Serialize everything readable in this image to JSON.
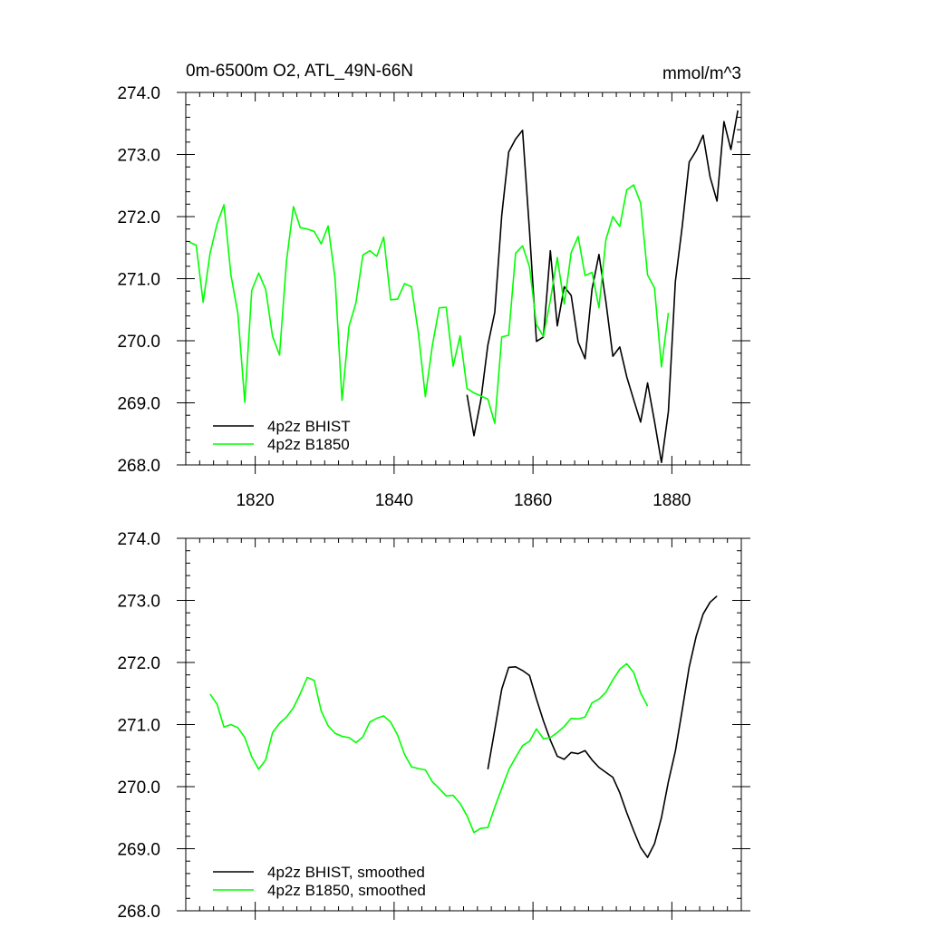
{
  "chart_data": [
    {
      "type": "line",
      "title_left": "0m-6500m O2, ATL_49N-66N",
      "title_right": "mmol/m^3",
      "xlim": [
        1810,
        1890
      ],
      "ylim": [
        268.0,
        274.0
      ],
      "x_ticks": [
        1820,
        1840,
        1860,
        1880
      ],
      "x_tick_labels": [
        "1820",
        "1840",
        "1860",
        "1880"
      ],
      "y_ticks": [
        268.0,
        269.0,
        270.0,
        271.0,
        272.0,
        273.0,
        274.0
      ],
      "y_tick_labels": [
        "268.0",
        "269.0",
        "270.0",
        "271.0",
        "272.0",
        "273.0",
        "274.0"
      ],
      "legend_position": "bottom-left",
      "series": [
        {
          "name": "4p2z BHIST",
          "color": "#000000",
          "x": [
            1850.5,
            1851.5,
            1852.5,
            1853.5,
            1854.5,
            1855.5,
            1856.5,
            1857.5,
            1858.5,
            1859.5,
            1860.5,
            1861.5,
            1862.5,
            1863.5,
            1864.5,
            1865.5,
            1866.5,
            1867.5,
            1868.5,
            1869.5,
            1870.5,
            1871.5,
            1872.5,
            1873.5,
            1874.5,
            1875.5,
            1876.5,
            1877.5,
            1878.5,
            1879.5,
            1880.5,
            1881.5,
            1882.5,
            1883.5,
            1884.5,
            1885.5,
            1886.5,
            1887.5,
            1888.5,
            1889.5
          ],
          "values": [
            269.13,
            268.47,
            269.05,
            269.93,
            270.46,
            272.02,
            273.04,
            273.25,
            273.39,
            271.77,
            269.99,
            270.06,
            271.45,
            270.24,
            270.87,
            270.73,
            269.98,
            269.71,
            270.83,
            271.39,
            270.63,
            269.75,
            269.9,
            269.42,
            269.05,
            268.69,
            269.32,
            268.7,
            268.04,
            268.86,
            270.95,
            271.85,
            272.88,
            273.06,
            273.31,
            272.64,
            272.25,
            273.53,
            273.08,
            273.71
          ]
        },
        {
          "name": "4p2z B1850",
          "color": "#00ff00",
          "x": [
            1810.5,
            1811.5,
            1812.5,
            1813.5,
            1814.5,
            1815.5,
            1816.5,
            1817.5,
            1818.5,
            1819.5,
            1820.5,
            1821.5,
            1822.5,
            1823.5,
            1824.5,
            1825.5,
            1826.5,
            1827.5,
            1828.5,
            1829.5,
            1830.5,
            1831.5,
            1832.5,
            1833.5,
            1834.5,
            1835.5,
            1836.5,
            1837.5,
            1838.5,
            1839.5,
            1840.5,
            1841.5,
            1842.5,
            1843.5,
            1844.5,
            1845.5,
            1846.5,
            1847.5,
            1848.5,
            1849.5,
            1850.5,
            1851.5,
            1852.5,
            1853.5,
            1854.5,
            1855.5,
            1856.5,
            1857.5,
            1858.5,
            1859.5,
            1860.5,
            1861.5,
            1862.5,
            1863.5,
            1864.5,
            1865.5,
            1866.5,
            1867.5,
            1868.5,
            1869.5,
            1870.5,
            1871.5,
            1872.5,
            1873.5,
            1874.5,
            1875.5,
            1876.5,
            1877.5,
            1878.5,
            1879.5
          ],
          "values": [
            271.59,
            271.54,
            270.62,
            271.41,
            271.88,
            272.19,
            271.06,
            270.44,
            269.01,
            270.81,
            271.09,
            270.83,
            270.07,
            269.77,
            271.28,
            272.16,
            271.82,
            271.8,
            271.76,
            271.56,
            271.85,
            271.0,
            269.04,
            270.23,
            270.61,
            271.38,
            271.45,
            271.36,
            271.67,
            270.66,
            270.67,
            270.92,
            270.87,
            270.12,
            269.1,
            269.92,
            270.53,
            270.54,
            269.59,
            270.08,
            269.23,
            269.16,
            269.11,
            269.06,
            268.67,
            270.06,
            270.09,
            271.41,
            271.53,
            271.19,
            270.26,
            270.07,
            270.65,
            271.34,
            270.59,
            271.42,
            271.68,
            271.05,
            271.1,
            270.53,
            271.63,
            272.0,
            271.84,
            272.43,
            272.51,
            272.22,
            271.06,
            270.85,
            269.58,
            270.45
          ]
        }
      ]
    },
    {
      "type": "line",
      "xlim": [
        1810,
        1890
      ],
      "ylim": [
        268.0,
        274.0
      ],
      "y_ticks": [
        268.0,
        269.0,
        270.0,
        271.0,
        272.0,
        273.0,
        274.0
      ],
      "y_tick_labels": [
        "268.0",
        "269.0",
        "270.0",
        "271.0",
        "272.0",
        "273.0",
        "274.0"
      ],
      "legend_position": "bottom-left",
      "series": [
        {
          "name": "4p2z BHIST, smoothed",
          "color": "#000000",
          "x": [
            1853.5,
            1854.5,
            1855.5,
            1856.5,
            1857.5,
            1858.5,
            1859.5,
            1860.5,
            1861.5,
            1862.5,
            1863.5,
            1864.5,
            1865.5,
            1866.5,
            1867.5,
            1868.5,
            1869.5,
            1870.5,
            1871.5,
            1872.5,
            1873.5,
            1874.5,
            1875.5,
            1876.5,
            1877.5,
            1878.5,
            1879.5,
            1880.5,
            1881.5,
            1882.5,
            1883.5,
            1884.5,
            1885.5,
            1886.5
          ],
          "values": [
            270.28,
            270.92,
            271.57,
            271.92,
            271.93,
            271.87,
            271.79,
            271.41,
            271.06,
            270.75,
            270.49,
            270.44,
            270.55,
            270.53,
            270.58,
            270.43,
            270.31,
            270.23,
            270.15,
            269.9,
            269.58,
            269.29,
            269.02,
            268.86,
            269.08,
            269.5,
            270.08,
            270.57,
            271.24,
            271.93,
            272.42,
            272.78,
            272.97,
            273.07
          ]
        },
        {
          "name": "4p2z B1850, smoothed",
          "color": "#00ff00",
          "x": [
            1813.5,
            1814.5,
            1815.5,
            1816.5,
            1817.5,
            1818.5,
            1819.5,
            1820.5,
            1821.5,
            1822.5,
            1823.5,
            1824.5,
            1825.5,
            1826.5,
            1827.5,
            1828.5,
            1829.5,
            1830.5,
            1831.5,
            1832.5,
            1833.5,
            1834.5,
            1835.5,
            1836.5,
            1837.5,
            1838.5,
            1839.5,
            1840.5,
            1841.5,
            1842.5,
            1843.5,
            1844.5,
            1845.5,
            1846.5,
            1847.5,
            1848.5,
            1849.5,
            1850.5,
            1851.5,
            1852.5,
            1853.5,
            1854.5,
            1855.5,
            1856.5,
            1857.5,
            1858.5,
            1859.5,
            1860.5,
            1861.5,
            1862.5,
            1863.5,
            1864.5,
            1865.5,
            1866.5,
            1867.5,
            1868.5,
            1869.5,
            1870.5,
            1871.5,
            1872.5,
            1873.5,
            1874.5,
            1875.5,
            1876.5
          ],
          "values": [
            271.49,
            271.33,
            270.96,
            271.0,
            270.95,
            270.79,
            270.48,
            270.28,
            270.43,
            270.87,
            271.02,
            271.12,
            271.27,
            271.5,
            271.76,
            271.71,
            271.22,
            270.98,
            270.86,
            270.81,
            270.79,
            270.71,
            270.8,
            271.04,
            271.1,
            271.14,
            271.04,
            270.83,
            270.52,
            270.32,
            270.29,
            270.27,
            270.08,
            269.97,
            269.85,
            269.86,
            269.73,
            269.53,
            269.26,
            269.33,
            269.34,
            269.67,
            269.97,
            270.27,
            270.47,
            270.66,
            270.73,
            270.93,
            270.77,
            270.79,
            270.87,
            270.97,
            271.1,
            271.09,
            271.12,
            271.35,
            271.41,
            271.52,
            271.72,
            271.89,
            271.98,
            271.84,
            271.51,
            271.3
          ]
        }
      ]
    }
  ]
}
